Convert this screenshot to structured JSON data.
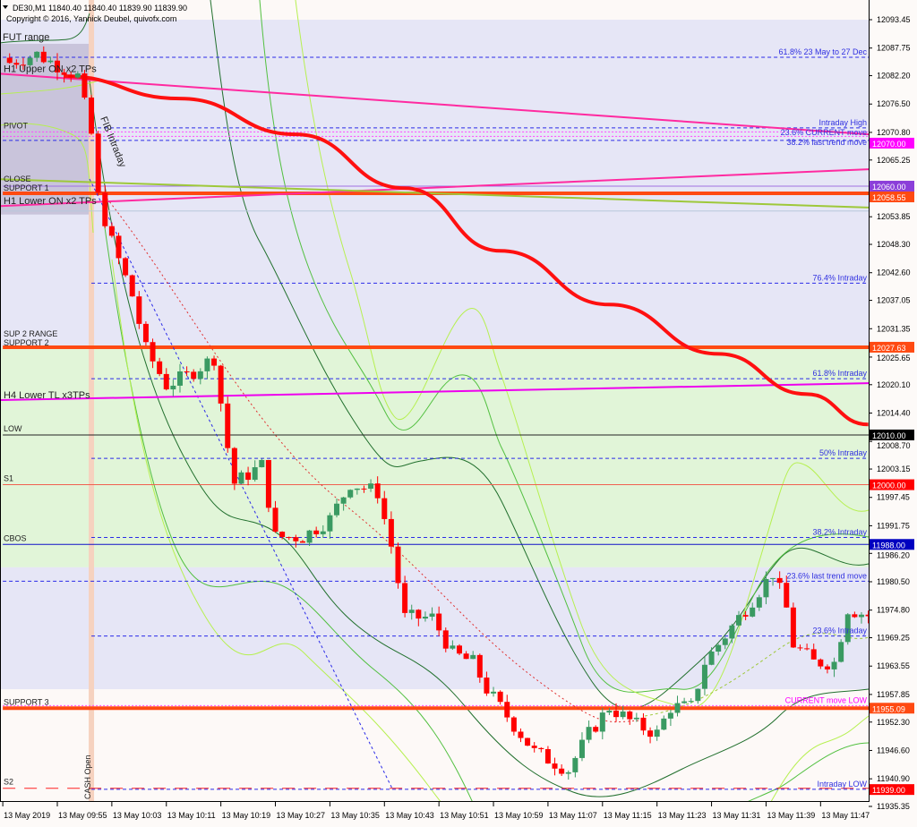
{
  "header": {
    "symbol_line": "DE30,M1  11840.40 11840.40 11839.90 11839.90",
    "copyright": "Copyright © 2016, Yannick Deubel, quivofx.com"
  },
  "chart_data": {
    "type": "candlestick",
    "symbol": "DE30",
    "timeframe": "M1",
    "ylim": [
      11935.35,
      12093.45
    ],
    "y_ticks": [
      "12093.45",
      "12087.75",
      "12082.20",
      "12076.50",
      "12070.80",
      "12065.25",
      "12053.85",
      "12048.30",
      "12042.60",
      "12037.05",
      "12031.35",
      "12025.65",
      "12020.10",
      "12014.40",
      "12008.70",
      "12003.15",
      "11997.45",
      "11991.75",
      "11986.20",
      "11980.50",
      "11974.80",
      "11969.25",
      "11963.55",
      "11957.85",
      "11952.30",
      "11946.60",
      "11940.90",
      "11935.35"
    ],
    "x_ticks": [
      {
        "t": "09:47",
        "label": "13 May 2019"
      },
      {
        "t": "09:55",
        "label": "13 May 09:55"
      },
      {
        "t": "10:03",
        "label": "13 May 10:03"
      },
      {
        "t": "10:11",
        "label": "13 May 10:11"
      },
      {
        "t": "10:19",
        "label": "13 May 10:19"
      },
      {
        "t": "10:27",
        "label": "13 May 10:27"
      },
      {
        "t": "10:35",
        "label": "13 May 10:35"
      },
      {
        "t": "10:43",
        "label": "13 May 10:43"
      },
      {
        "t": "10:51",
        "label": "13 May 10:51"
      },
      {
        "t": "10:59",
        "label": "13 May 10:59"
      },
      {
        "t": "11:07",
        "label": "13 May 11:07"
      },
      {
        "t": "11:15",
        "label": "13 May 11:15"
      },
      {
        "t": "11:23",
        "label": "13 May 11:23"
      },
      {
        "t": "11:31",
        "label": "13 May 11:31"
      },
      {
        "t": "11:39",
        "label": "13 May 11:39"
      },
      {
        "t": "11:47",
        "label": "13 May 11:47"
      }
    ],
    "time_range": [
      "09:48",
      "11:54"
    ],
    "close_path": [
      {
        "t": "09:48",
        "p": 12084.8
      },
      {
        "t": "09:52",
        "p": 12086.5
      },
      {
        "t": "09:58",
        "p": 12082.1
      },
      {
        "t": "10:00",
        "p": 12070.4
      },
      {
        "t": "10:01",
        "p": 12057.8
      },
      {
        "t": "10:03",
        "p": 12048.8
      },
      {
        "t": "10:06",
        "p": 12038.0
      },
      {
        "t": "10:08",
        "p": 12027.2
      },
      {
        "t": "10:11",
        "p": 12020.0
      },
      {
        "t": "10:14",
        "p": 12021.9
      },
      {
        "t": "10:18",
        "p": 12025.5
      },
      {
        "t": "10:20",
        "p": 12007.5
      },
      {
        "t": "10:21",
        "p": 12000.3
      },
      {
        "t": "10:25",
        "p": 12003.9
      },
      {
        "t": "10:27",
        "p": 11989.5
      },
      {
        "t": "10:31",
        "p": 11989.5
      },
      {
        "t": "10:35",
        "p": 11993.1
      },
      {
        "t": "10:38",
        "p": 12000.3
      },
      {
        "t": "10:42",
        "p": 11998.5
      },
      {
        "t": "10:44",
        "p": 11987.7
      },
      {
        "t": "10:46",
        "p": 11973.3
      },
      {
        "t": "10:50",
        "p": 11973.3
      },
      {
        "t": "10:53",
        "p": 11966.1
      },
      {
        "t": "10:56",
        "p": 11964.3
      },
      {
        "t": "10:58",
        "p": 11958.9
      },
      {
        "t": "11:01",
        "p": 11953.5
      },
      {
        "t": "11:05",
        "p": 11946.3
      },
      {
        "t": "11:10",
        "p": 11942.7
      },
      {
        "t": "11:13",
        "p": 11949.9
      },
      {
        "t": "11:16",
        "p": 11955.3
      },
      {
        "t": "11:20",
        "p": 11951.7
      },
      {
        "t": "11:23",
        "p": 11950.0
      },
      {
        "t": "11:25",
        "p": 11955.3
      },
      {
        "t": "11:28",
        "p": 11955.3
      },
      {
        "t": "11:30",
        "p": 11964.3
      },
      {
        "t": "11:34",
        "p": 11971.5
      },
      {
        "t": "11:38",
        "p": 11978.7
      },
      {
        "t": "11:40",
        "p": 11982.3
      },
      {
        "t": "11:42",
        "p": 11975.1
      },
      {
        "t": "11:43",
        "p": 11967.9
      },
      {
        "t": "11:46",
        "p": 11964.3
      },
      {
        "t": "11:49",
        "p": 11964.3
      },
      {
        "t": "11:51",
        "p": 11975.1
      },
      {
        "t": "11:54",
        "p": 11973.7
      }
    ],
    "moving_average": [
      {
        "t": "09:56",
        "p": 12082.1
      },
      {
        "t": "10:13",
        "p": 12077.6
      },
      {
        "t": "10:30",
        "p": 12070.4
      },
      {
        "t": "10:46",
        "p": 12059.6
      },
      {
        "t": "11:00",
        "p": 12047.0
      },
      {
        "t": "11:16",
        "p": 12036.2
      },
      {
        "t": "11:32",
        "p": 12026.3
      },
      {
        "t": "11:45",
        "p": 12018.2
      },
      {
        "t": "11:54",
        "p": 12012.1
      }
    ],
    "zones": [
      {
        "from": 12027.63,
        "to": 12093.45,
        "color": "#e6e6f6"
      },
      {
        "from": 11983.4,
        "to": 12027.63,
        "color": "#e1f5d8"
      },
      {
        "from": 11958.9,
        "to": 11983.4,
        "color": "#e6e6f6"
      }
    ],
    "fut_range_box": {
      "label": "FUT range",
      "t_end": "10:00",
      "top": 12088.6,
      "bottom": 12054.3,
      "color": "#c9c4db"
    },
    "cash_open": {
      "t": "10:00",
      "label": "CASH Open",
      "color": "#f6d2bf"
    },
    "trendlines": [
      {
        "label": "H1 Upper ON x2 TPs",
        "p_start": 12082.6,
        "p_end": 12070.4,
        "color": "#ff2aa0",
        "width": 2
      },
      {
        "label": "H1 Lower ON x2 TPs",
        "p_start": 12056.0,
        "p_end": 12063.4,
        "color": "#ff2aa0",
        "width": 2
      },
      {
        "label": "H4 Lower TL x3TPs",
        "p_start": 12017.0,
        "p_end": 12020.4,
        "color": "#ee00ee",
        "width": 2
      },
      {
        "label": "CLOSE",
        "p_start": 12061.4,
        "p_end": 12055.7,
        "color": "#9ec83a",
        "width": 2
      }
    ],
    "levels": [
      {
        "price": 12085.9,
        "style": "dash",
        "color": "#2a2ae8",
        "right_text": "61.8%  23 May to 27 Dec",
        "from_t": "09:47"
      },
      {
        "price": 12071.7,
        "style": "dash",
        "color": "#2a2ae8",
        "right_text": "Intraday High",
        "from_t": "10:00"
      },
      {
        "price": 12070.9,
        "style": "dot",
        "color": "#ff44ff",
        "right_text": "23.6% CURRENT move",
        "from_t": "09:47",
        "left_text": "PIVOT"
      },
      {
        "price": 12070.0,
        "style": "dot",
        "color": "#ff44ff",
        "from_t": "09:47",
        "axis_label": "12070.00",
        "axis_bg": "#ff00ff",
        "axis_fg": "#ffffff"
      },
      {
        "price": 12069.2,
        "style": "dash",
        "color": "#2a2ae8",
        "right_text": "38.2% last trend move",
        "from_t": "09:47"
      },
      {
        "price": 12060.0,
        "style": "solid",
        "color": "#a070e0",
        "from_t": "09:47",
        "left_text": "SUPPORT 1",
        "axis_label": "12060.00",
        "axis_bg": "#8b3fd9",
        "axis_fg": "#ffffff"
      },
      {
        "price": 12058.55,
        "style": "solid",
        "color": "#ff4a12",
        "width": 4,
        "from_t": "09:47",
        "axis_label": "12058.55",
        "axis_bg": "#ff4a12",
        "axis_fg": "#ffffff"
      },
      {
        "price": 12055.0,
        "style": "solid",
        "color": "#b8c8dc",
        "from_t": "09:47"
      },
      {
        "price": 12040.5,
        "style": "dash",
        "color": "#2a2ae8",
        "right_text": "76.4%  Intraday",
        "from_t": "10:00"
      },
      {
        "price": 12027.63,
        "style": "solid",
        "color": "#ff4a12",
        "width": 4,
        "from_t": "09:47",
        "left_text": "SUP 2 RANGE",
        "left_text2": "SUPPORT 2",
        "axis_label": "12027.63",
        "axis_bg": "#ff4a12",
        "axis_fg": "#ffffff"
      },
      {
        "price": 12021.3,
        "style": "dash",
        "color": "#2a2ae8",
        "right_text": "61.8% Intraday",
        "from_t": "10:00"
      },
      {
        "price": 12010.0,
        "style": "solid",
        "color": "#222222",
        "from_t": "09:47",
        "left_text": "LOW",
        "axis_label": "12010.00",
        "axis_bg": "#000000",
        "axis_fg": "#ffffff"
      },
      {
        "price": 12005.3,
        "style": "dash",
        "color": "#2a2ae8",
        "right_text": "50%   Intraday",
        "from_t": "10:00"
      },
      {
        "price": 12000.0,
        "style": "solid",
        "color": "#f06050",
        "from_t": "09:47",
        "left_text": "S1",
        "axis_label": "12000.00",
        "axis_bg": "#ff0000",
        "axis_fg": "#ffffff"
      },
      {
        "price": 11989.4,
        "style": "dash",
        "color": "#2a2ae8",
        "right_text": "38.2%  Intraday",
        "from_t": "10:00"
      },
      {
        "price": 11988.0,
        "style": "solid",
        "color": "#1010c8",
        "from_t": "09:47",
        "left_text": "CBOS",
        "axis_label": "11988.00",
        "axis_bg": "#0000c0",
        "axis_fg": "#ffffff"
      },
      {
        "price": 11980.6,
        "style": "dash",
        "color": "#2a2ae8",
        "right_text": "23.6% last trend move",
        "from_t": "09:47"
      },
      {
        "price": 11969.6,
        "style": "dash",
        "color": "#2a2ae8",
        "right_text": "23.6%  Intraday",
        "from_t": "10:00"
      },
      {
        "price": 11955.09,
        "style": "solid",
        "color": "#ff4a12",
        "width": 4,
        "from_t": "09:47",
        "left_text": "SUPPORT 3",
        "axis_label": "11955.09",
        "axis_bg": "#ff4a12",
        "axis_fg": "#ffffff"
      },
      {
        "price": 11955.6,
        "style": "dot",
        "color": "#ff44ff",
        "right_text": "CURRENT move LOW",
        "right_color": "#ff00ff",
        "from_t": "09:47"
      },
      {
        "price": 11939.0,
        "style": "longdash",
        "color": "#ff2020",
        "from_t": "09:47",
        "left_text": "S2",
        "axis_label": "11939.00",
        "axis_bg": "#ff0000",
        "axis_fg": "#ffffff"
      },
      {
        "price": 11938.8,
        "style": "dash",
        "color": "#2a2ae8",
        "right_text": "Intraday LOW",
        "from_t": "10:00"
      }
    ],
    "fib_label": "FIB Intraday",
    "colors": {
      "bull": "#3a9a62",
      "bear": "#ff0000",
      "ma": "#ff1010",
      "grid_axis": "#000000"
    }
  }
}
